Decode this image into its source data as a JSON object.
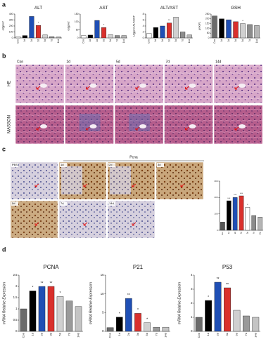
{
  "panels": {
    "labels": [
      "a",
      "b",
      "c",
      "d"
    ]
  },
  "stain_panel": {
    "columns": [
      "Con",
      "2d",
      "5d",
      "7d",
      "14d"
    ],
    "rows": [
      "HE",
      "MASSON"
    ]
  },
  "ihc_panel": {
    "title": "Pcna",
    "labels": [
      "PBS",
      "1d",
      "2d",
      "3d",
      "5d",
      "7d",
      "14d"
    ]
  },
  "chart_data": [
    {
      "type": "bar",
      "title": "ALT",
      "y_label": "U/gprot",
      "categories": [
        "Con",
        "1d",
        "2d",
        "3d",
        "5d",
        "7d",
        "14d"
      ],
      "values": [
        20,
        40,
        360,
        210,
        50,
        20,
        15
      ],
      "annotations": [
        null,
        null,
        null,
        "*",
        null,
        null,
        null
      ],
      "colors": [
        "#ffffff",
        "#000000",
        "#1f4fb5",
        "#d9302c",
        "#d0d0d0",
        "#8c8c8c",
        "#b5b5b5"
      ],
      "ylim": [
        0,
        400
      ],
      "yticks": [
        0,
        100,
        200,
        300,
        400
      ]
    },
    {
      "type": "bar",
      "title": "AST",
      "y_label": "U/gprot",
      "categories": [
        "Con",
        "1d",
        "2d",
        "3d",
        "5d",
        "7d",
        "14d"
      ],
      "values": [
        15,
        18,
        110,
        65,
        20,
        15,
        15
      ],
      "annotations": [
        null,
        null,
        null,
        "*",
        null,
        null,
        null
      ],
      "colors": [
        "#ffffff",
        "#000000",
        "#1f4fb5",
        "#d9302c",
        "#d0d0d0",
        "#8c8c8c",
        "#b5b5b5"
      ],
      "ylim": [
        0,
        150
      ],
      "yticks": [
        0,
        50,
        100,
        150
      ]
    },
    {
      "type": "bar",
      "title": "ALT/AST",
      "y_label": "U/gprot ALT/AST",
      "categories": [
        "Con",
        "1d",
        "2d",
        "3d",
        "5d",
        "7d",
        "14d"
      ],
      "values": [
        1.5,
        3.5,
        4,
        5,
        7,
        2,
        1
      ],
      "annotations": [
        null,
        null,
        null,
        "**",
        null,
        null,
        null
      ],
      "colors": [
        "#ffffff",
        "#000000",
        "#1f4fb5",
        "#d9302c",
        "#d0d0d0",
        "#8c8c8c",
        "#b5b5b5"
      ],
      "ylim": [
        0,
        8
      ],
      "yticks": [
        0,
        2,
        4,
        6,
        8
      ]
    },
    {
      "type": "bar",
      "title": "GSH",
      "y_label": "μmol/L",
      "categories": [
        "Con",
        "1d",
        "2d",
        "3d",
        "5d",
        "7d",
        "14d"
      ],
      "values": [
        230,
        200,
        190,
        170,
        150,
        140,
        130
      ],
      "annotations": [
        null,
        null,
        null,
        null,
        "*",
        null,
        null
      ],
      "colors": [
        "#6b6b6b",
        "#000000",
        "#1f4fb5",
        "#d9302c",
        "#d0d0d0",
        "#8c8c8c",
        "#b5b5b5"
      ],
      "ylim": [
        0,
        250
      ],
      "yticks": [
        0,
        50,
        100,
        150,
        200,
        250
      ]
    },
    {
      "type": "bar",
      "categories": [
        "Con",
        "1d",
        "2d",
        "3d",
        "5d",
        "7d",
        "14d"
      ],
      "values": [
        50,
        180,
        200,
        210,
        140,
        90,
        80
      ],
      "annotations": [
        null,
        "***",
        "***",
        "***",
        "*",
        null,
        null
      ],
      "colors": [
        "#555555",
        "#000000",
        "#1f4fb5",
        "#d9302c",
        "#ffffff",
        "#8c8c8c",
        "#b5b5b5"
      ],
      "ylim": [
        0,
        300
      ],
      "yticks": [
        0,
        100,
        200,
        300
      ]
    },
    {
      "type": "bar",
      "title": "PCNA",
      "y_label": "mRNA Relative Expression",
      "categories": [
        "Con",
        "1d",
        "2d",
        "3d",
        "5d",
        "7d",
        "14d"
      ],
      "values": [
        1.0,
        1.8,
        2.0,
        2.0,
        1.55,
        1.35,
        1.1
      ],
      "annotations": [
        null,
        "*",
        "**",
        "**",
        "*",
        null,
        null
      ],
      "colors": [
        "#6b6b6b",
        "#000000",
        "#1f4fb5",
        "#d9302c",
        "#d0d0d0",
        "#9a9a9a",
        "#c4c4c4"
      ],
      "ylim": [
        0,
        2.5
      ],
      "yticks": [
        0,
        0.5,
        1,
        1.5,
        2,
        2.5
      ]
    },
    {
      "type": "bar",
      "title": "P21",
      "y_label": "mRNA Relative Expression",
      "categories": [
        "Con",
        "1d",
        "2d",
        "3d",
        "5d",
        "7d",
        "14d"
      ],
      "values": [
        1,
        3.8,
        8.8,
        4.8,
        2.3,
        1.1,
        1.1
      ],
      "annotations": [
        null,
        "*",
        "**",
        "*",
        "*",
        null,
        null
      ],
      "colors": [
        "#6b6b6b",
        "#000000",
        "#1f4fb5",
        "#d9302c",
        "#d0d0d0",
        "#9a9a9a",
        "#c4c4c4"
      ],
      "ylim": [
        0,
        15
      ],
      "yticks": [
        0,
        5,
        10,
        15
      ]
    },
    {
      "type": "bar",
      "title": "P53",
      "y_label": "mRNA Relative Expression",
      "categories": [
        "Con",
        "1d",
        "2d",
        "3d",
        "5d",
        "7d",
        "14d"
      ],
      "values": [
        1,
        2.2,
        3.5,
        3.1,
        1.5,
        1.1,
        1.0
      ],
      "annotations": [
        null,
        "*",
        "**",
        "**",
        null,
        null,
        null
      ],
      "colors": [
        "#6b6b6b",
        "#000000",
        "#1f4fb5",
        "#d9302c",
        "#d0d0d0",
        "#9a9a9a",
        "#c4c4c4"
      ],
      "ylim": [
        0,
        4
      ],
      "yticks": [
        0,
        1,
        2,
        3,
        4
      ]
    }
  ]
}
